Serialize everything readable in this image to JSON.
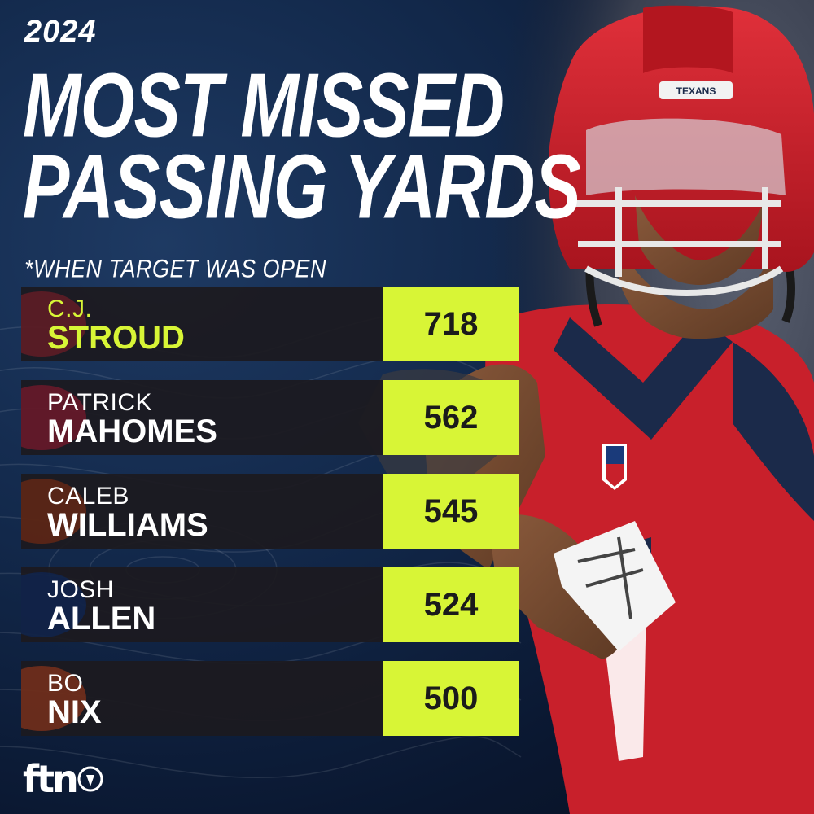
{
  "header": {
    "year": "2024",
    "title_line1": "MOST MISSED",
    "title_line2": "PASSING YARDS",
    "subtitle": "*WHEN TARGET WAS OPEN"
  },
  "brand": {
    "name": "ftn"
  },
  "colors": {
    "accent": "#d8f536",
    "row_bg": "#1c1a1f",
    "background": "#0d1b33",
    "jersey_red": "#c8202b",
    "jersey_navy": "#1b2a4a"
  },
  "chart_data": {
    "type": "bar",
    "title": "MOST MISSED PASSING YARDS",
    "subtitle": "*WHEN TARGET WAS OPEN",
    "year": "2024",
    "categories": [
      "C.J. STROUD",
      "PATRICK MAHOMES",
      "CALEB WILLIAMS",
      "JOSH ALLEN",
      "BO NIX"
    ],
    "rows": [
      {
        "first": "C.J.",
        "last": "STROUD",
        "value": "718",
        "logo": "texans-logo-icon",
        "logo_color": "#c8202b"
      },
      {
        "first": "PATRICK",
        "last": "MAHOMES",
        "value": "562",
        "logo": "chiefs-logo-icon",
        "logo_color": "#e31837"
      },
      {
        "first": "CALEB",
        "last": "WILLIAMS",
        "value": "545",
        "logo": "bears-logo-icon",
        "logo_color": "#c83803"
      },
      {
        "first": "JOSH",
        "last": "ALLEN",
        "value": "524",
        "logo": "bills-logo-icon",
        "logo_color": "#00338d"
      },
      {
        "first": "BO",
        "last": "NIX",
        "value": "500",
        "logo": "broncos-logo-icon",
        "logo_color": "#fb4f14"
      }
    ],
    "values": [
      718,
      562,
      545,
      524,
      500
    ],
    "highlight_index": 0
  }
}
